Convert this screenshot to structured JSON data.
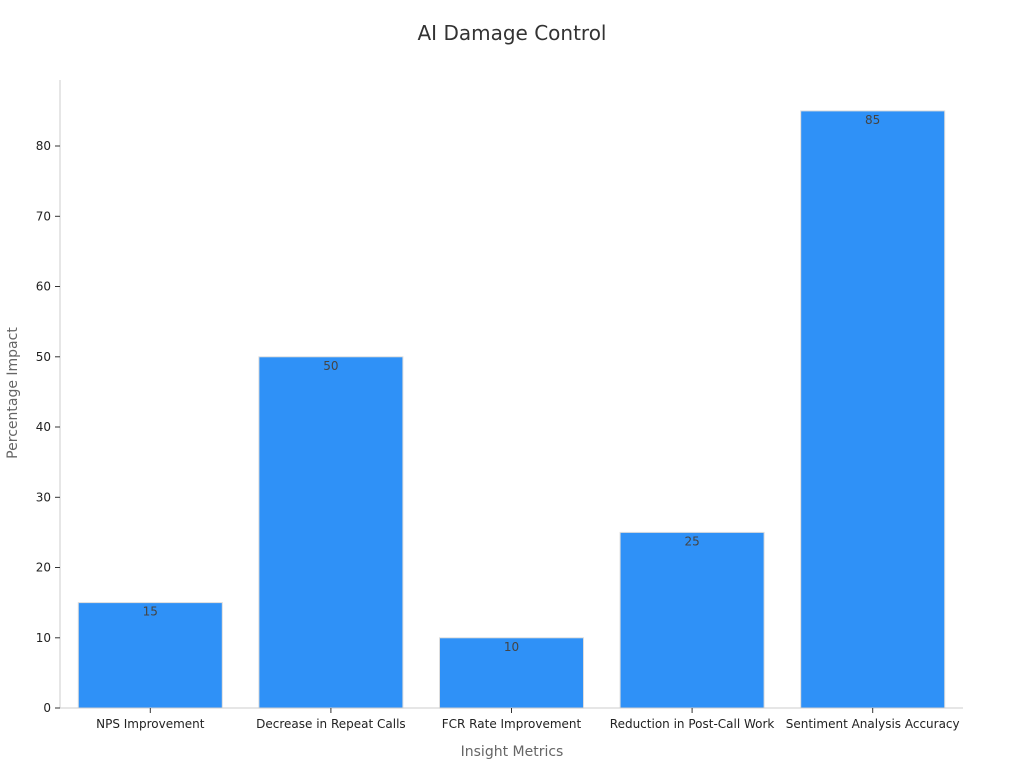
{
  "chart_data": {
    "type": "bar",
    "title": "AI Damage Control",
    "xlabel": "Insight Metrics",
    "ylabel": "Percentage Impact",
    "categories": [
      "NPS Improvement",
      "Decrease in Repeat Calls",
      "FCR Rate Improvement",
      "Reduction in Post-Call Work",
      "Sentiment Analysis Accuracy"
    ],
    "values": [
      15,
      50,
      10,
      25,
      85
    ],
    "ylim": [
      0,
      88
    ],
    "yticks": [
      0,
      10,
      20,
      30,
      40,
      50,
      60,
      70,
      80
    ],
    "grid": false,
    "bar_color": "#2f91f7",
    "data_labels": true
  }
}
